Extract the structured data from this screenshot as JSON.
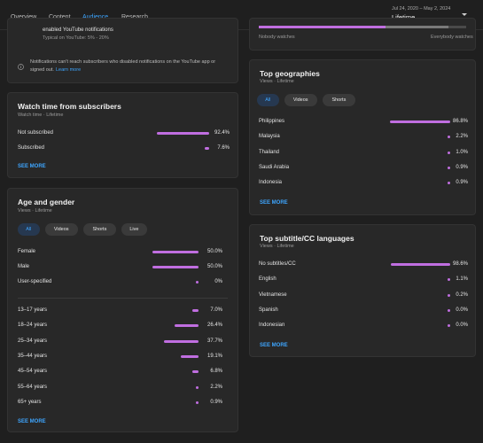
{
  "tabs": [
    "Overview",
    "Content",
    "Audience",
    "Research"
  ],
  "active_tab": "Audience",
  "date_range": {
    "range": "Jul 24, 2020 – May 2, 2024",
    "value": "Lifetime"
  },
  "notifications": {
    "line1": "enabled YouTube notifications",
    "line2": "Typical on YouTube: 5% - 20%",
    "info_text_1": "Notifications can't reach subscribers who disabled notifications on the YouTube app or",
    "info_text_2": "signed out.",
    "learn_more": "Learn more"
  },
  "watch_time": {
    "title": "Watch time from subscribers",
    "subtitle": "Watch time · Lifetime",
    "rows": [
      {
        "label": "Not subscribed",
        "pct": "92.4%",
        "value": 92.4
      },
      {
        "label": "Subscribed",
        "pct": "7.6%",
        "value": 7.6
      }
    ],
    "see_more": "SEE MORE"
  },
  "age_gender": {
    "title": "Age and gender",
    "subtitle": "Views · Lifetime",
    "chips": [
      "All",
      "Videos",
      "Shorts",
      "Live"
    ],
    "gender_rows": [
      {
        "label": "Female",
        "pct": "50.0%",
        "value": 50.0
      },
      {
        "label": "Male",
        "pct": "50.0%",
        "value": 50.0
      },
      {
        "label": "User-specified",
        "pct": "0%",
        "value": 0
      }
    ],
    "age_rows": [
      {
        "label": "13–17 years",
        "pct": "7.0%",
        "value": 7.0
      },
      {
        "label": "18–24 years",
        "pct": "26.4%",
        "value": 26.4
      },
      {
        "label": "25–34 years",
        "pct": "37.7%",
        "value": 37.7
      },
      {
        "label": "35–44 years",
        "pct": "19.1%",
        "value": 19.1
      },
      {
        "label": "45–54 years",
        "pct": "6.8%",
        "value": 6.8
      },
      {
        "label": "55–64 years",
        "pct": "2.2%",
        "value": 2.2
      },
      {
        "label": "65+ years",
        "pct": "0.9%",
        "value": 0.9
      }
    ],
    "see_more": "SEE MORE"
  },
  "watch_scale": {
    "left": "Nobody watches",
    "right": "Everybody watches"
  },
  "geographies": {
    "title": "Top geographies",
    "subtitle": "Views · Lifetime",
    "chips": [
      "All",
      "Videos",
      "Shorts"
    ],
    "rows": [
      {
        "label": "Philippines",
        "pct": "86.8%",
        "value": 86.8
      },
      {
        "label": "Malaysia",
        "pct": "2.2%",
        "value": 2.2
      },
      {
        "label": "Thailand",
        "pct": "1.0%",
        "value": 1.0
      },
      {
        "label": "Saudi Arabia",
        "pct": "0.9%",
        "value": 0.9
      },
      {
        "label": "Indonesia",
        "pct": "0.9%",
        "value": 0.9
      }
    ],
    "see_more": "SEE MORE"
  },
  "subtitles": {
    "title": "Top subtitle/CC languages",
    "subtitle": "Views · Lifetime",
    "rows": [
      {
        "label": "No subtitles/CC",
        "pct": "98.6%",
        "value": 98.6
      },
      {
        "label": "English",
        "pct": "1.1%",
        "value": 1.1
      },
      {
        "label": "Vietnamese",
        "pct": "0.2%",
        "value": 0.2
      },
      {
        "label": "Spanish",
        "pct": "0.0%",
        "value": 0.0
      },
      {
        "label": "Indonesian",
        "pct": "0.0%",
        "value": 0.0
      }
    ],
    "see_more": "SEE MORE"
  },
  "colors": {
    "accent": "#3ea6ff",
    "bar": "#c06ee0",
    "card": "#282828",
    "background": "#1f1f1f"
  }
}
